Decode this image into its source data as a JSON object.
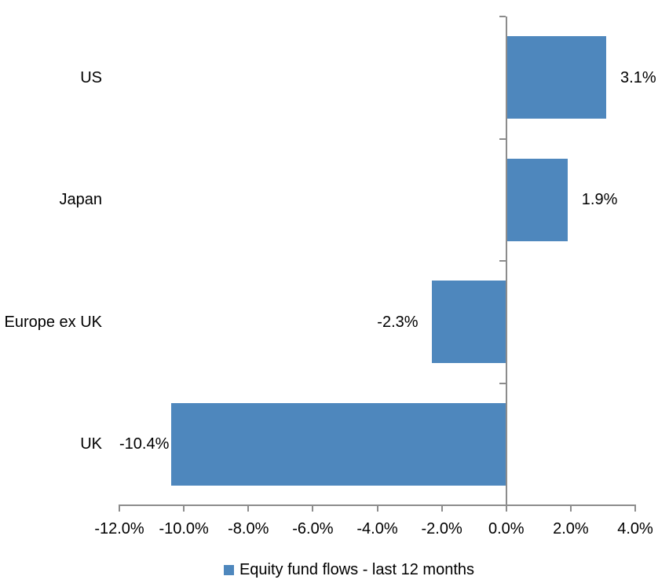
{
  "chart_data": {
    "type": "bar",
    "orientation": "horizontal",
    "categories": [
      "US",
      "Japan",
      "Europe ex UK",
      "UK"
    ],
    "values": [
      3.1,
      1.9,
      -2.3,
      -10.4
    ],
    "data_labels": [
      "3.1%",
      "1.9%",
      "-2.3%",
      "-10.4%"
    ],
    "series": [
      {
        "name": "Equity fund flows - last 12 months",
        "values": [
          3.1,
          1.9,
          -2.3,
          -10.4
        ]
      }
    ],
    "series_name": "Equity fund flows - last 12 months",
    "xlim": [
      -12,
      4
    ],
    "x_tick_values": [
      -12,
      -10,
      -8,
      -6,
      -4,
      -2,
      0,
      2,
      4
    ],
    "x_tick_labels": [
      "-12.0%",
      "-10.0%",
      "-8.0%",
      "-6.0%",
      "-4.0%",
      "-2.0%",
      "0.0%",
      "2.0%",
      "4.0%"
    ],
    "grid": false,
    "legend_position": "bottom",
    "colors": {
      "bar": "#4E87BD",
      "axis": "#8C8C8C",
      "text": "#000000",
      "background": "#FFFFFF"
    }
  }
}
